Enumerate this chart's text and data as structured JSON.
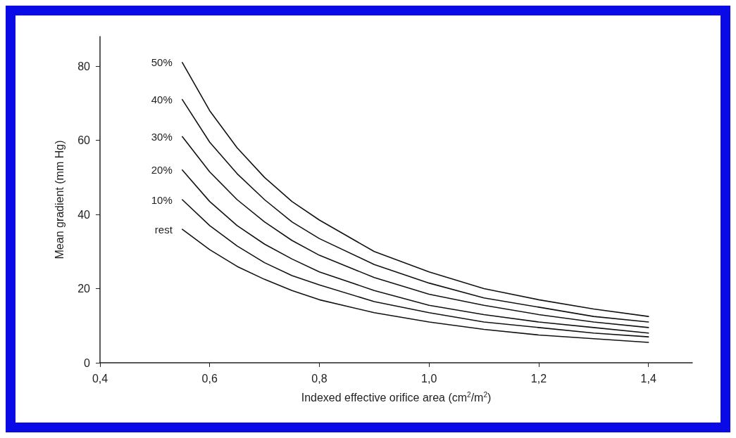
{
  "chart_data": {
    "type": "line",
    "xlabel": "Indexed effective orifice area (cm$^{2}$/m$^{2}$)",
    "ylabel": "Mean gradient (mm Hg)",
    "x": [
      0.55,
      0.6,
      0.65,
      0.7,
      0.75,
      0.8,
      0.9,
      1.0,
      1.1,
      1.2,
      1.3,
      1.4
    ],
    "series": [
      {
        "name": "50%",
        "color": "#111111",
        "values": [
          81,
          68,
          58,
          50,
          43.5,
          38.5,
          30,
          24.5,
          20,
          17,
          14.5,
          12.5
        ]
      },
      {
        "name": "40%",
        "color": "#111111",
        "values": [
          71,
          59.5,
          51,
          44,
          38,
          33.5,
          26.5,
          21.5,
          17.5,
          15,
          12.5,
          11
        ]
      },
      {
        "name": "30%",
        "color": "#111111",
        "values": [
          61,
          51.5,
          44,
          38,
          33,
          29,
          23,
          18.5,
          15.5,
          13,
          11,
          9.5
        ]
      },
      {
        "name": "20%",
        "color": "#111111",
        "values": [
          52,
          43.5,
          37,
          32,
          28,
          24.5,
          19.5,
          15.5,
          13,
          11,
          9.5,
          8
        ]
      },
      {
        "name": "10%",
        "color": "#111111",
        "values": [
          44,
          37,
          31.5,
          27,
          23.5,
          21,
          16.5,
          13.5,
          11,
          9.5,
          8,
          7
        ]
      },
      {
        "name": "rest",
        "color": "#111111",
        "values": [
          36,
          30.5,
          26,
          22.5,
          19.5,
          17,
          13.5,
          11,
          9,
          7.5,
          6.5,
          5.5
        ]
      }
    ],
    "xlim": [
      0.4,
      1.48
    ],
    "xticks": [
      {
        "value": 0.4,
        "label": "0,4"
      },
      {
        "value": 0.6,
        "label": "0,6"
      },
      {
        "value": 0.8,
        "label": "0,8"
      },
      {
        "value": 1.0,
        "label": "1,0"
      },
      {
        "value": 1.2,
        "label": "1,2"
      },
      {
        "value": 1.4,
        "label": "1,4"
      }
    ],
    "ylim": [
      0,
      88
    ],
    "yticks": [
      0,
      20,
      40,
      60,
      80
    ],
    "grid": false,
    "legend": false,
    "marker": "none",
    "line_style": "solid"
  }
}
